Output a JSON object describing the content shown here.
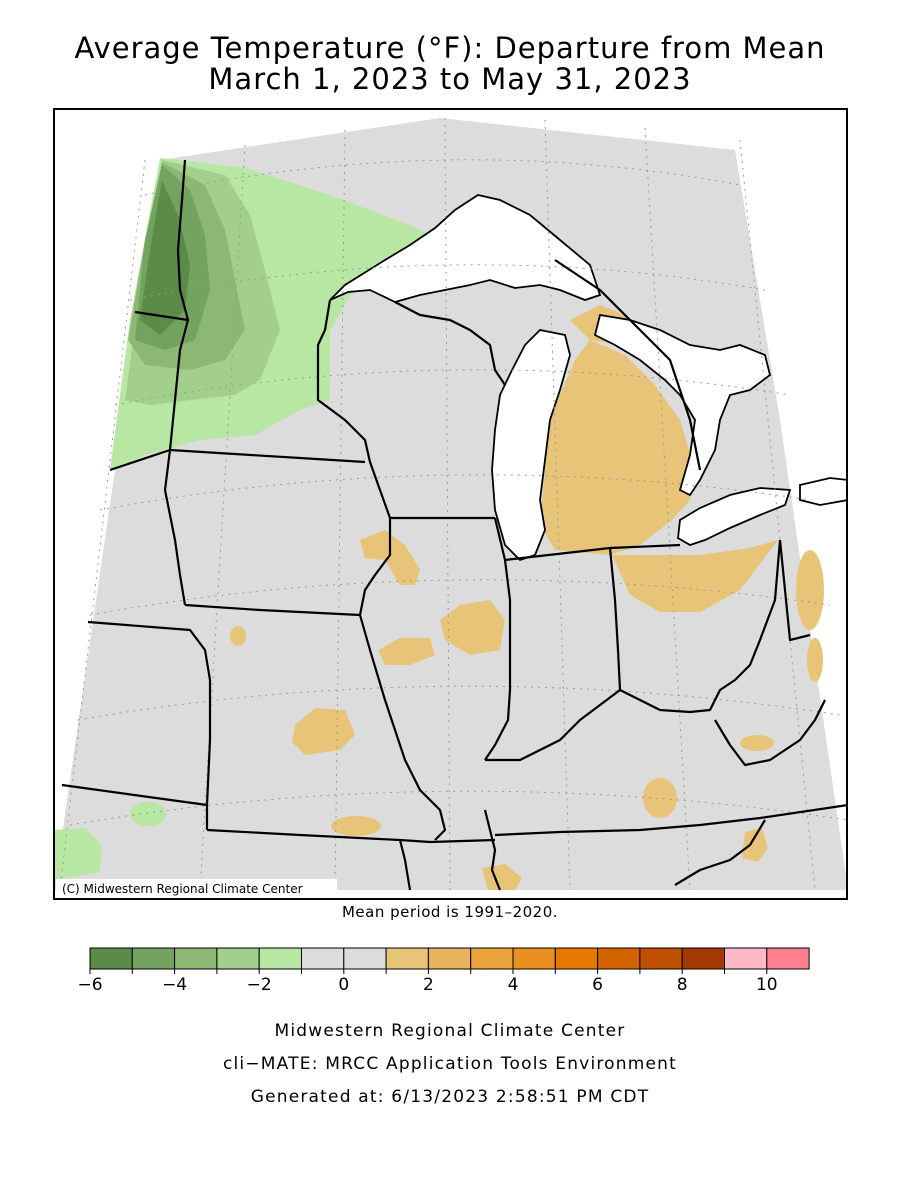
{
  "title": {
    "line1": "Average Temperature (°F): Departure from Mean",
    "line2": "March 1, 2023 to May 31, 2023"
  },
  "map": {
    "copyright": "(C) Midwestern Regional Climate Center",
    "mean_period_note": "Mean period is 1991–2020."
  },
  "legend": {
    "colors": [
      "#5b8c47",
      "#73a35e",
      "#8cb873",
      "#a3cf8c",
      "#b8e6a3",
      "#dcdcdc",
      "#dcdcdc",
      "#e8c478",
      "#e8b35c",
      "#e8a33a",
      "#e88f1f",
      "#e87800",
      "#d46400",
      "#c05000",
      "#a33800",
      "#ffb8c8",
      "#ff8090"
    ],
    "tick_labels": [
      "−6",
      "−4",
      "−2",
      "0",
      "2",
      "4",
      "6",
      "8",
      "10"
    ]
  },
  "footer": {
    "line1": "Midwestern Regional Climate Center",
    "line2": "cli−MATE: MRCC Application Tools Environment",
    "line3": "Generated at: 6/13/2023 2:58:51 PM CDT"
  }
}
